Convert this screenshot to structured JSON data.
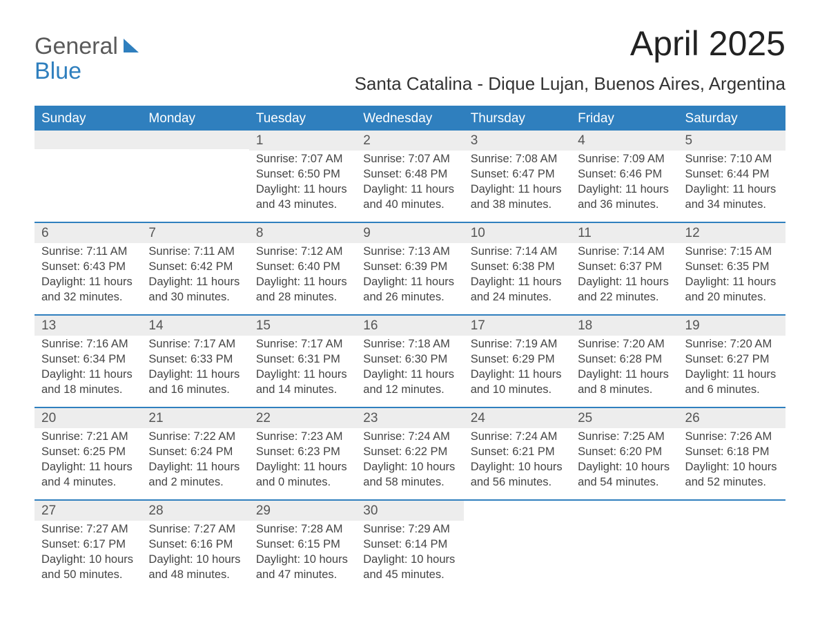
{
  "brand": {
    "text1": "General",
    "text2": "Blue"
  },
  "title": "April 2025",
  "location": "Santa Catalina - Dique Lujan, Buenos Aires, Argentina",
  "colors": {
    "brand_blue": "#2f7fbe",
    "header_text": "#ffffff",
    "daynum_bg": "#ededed",
    "body_text": "#444444",
    "page_bg": "#ffffff"
  },
  "day_names": [
    "Sunday",
    "Monday",
    "Tuesday",
    "Wednesday",
    "Thursday",
    "Friday",
    "Saturday"
  ],
  "labels": {
    "sunrise": "Sunrise:",
    "sunset": "Sunset:",
    "daylight": "Daylight:"
  },
  "weeks": [
    [
      {
        "empty": true
      },
      {
        "empty": true
      },
      {
        "day": "1",
        "sunrise": "7:07 AM",
        "sunset": "6:50 PM",
        "daylight": "11 hours and 43 minutes."
      },
      {
        "day": "2",
        "sunrise": "7:07 AM",
        "sunset": "6:48 PM",
        "daylight": "11 hours and 40 minutes."
      },
      {
        "day": "3",
        "sunrise": "7:08 AM",
        "sunset": "6:47 PM",
        "daylight": "11 hours and 38 minutes."
      },
      {
        "day": "4",
        "sunrise": "7:09 AM",
        "sunset": "6:46 PM",
        "daylight": "11 hours and 36 minutes."
      },
      {
        "day": "5",
        "sunrise": "7:10 AM",
        "sunset": "6:44 PM",
        "daylight": "11 hours and 34 minutes."
      }
    ],
    [
      {
        "day": "6",
        "sunrise": "7:11 AM",
        "sunset": "6:43 PM",
        "daylight": "11 hours and 32 minutes."
      },
      {
        "day": "7",
        "sunrise": "7:11 AM",
        "sunset": "6:42 PM",
        "daylight": "11 hours and 30 minutes."
      },
      {
        "day": "8",
        "sunrise": "7:12 AM",
        "sunset": "6:40 PM",
        "daylight": "11 hours and 28 minutes."
      },
      {
        "day": "9",
        "sunrise": "7:13 AM",
        "sunset": "6:39 PM",
        "daylight": "11 hours and 26 minutes."
      },
      {
        "day": "10",
        "sunrise": "7:14 AM",
        "sunset": "6:38 PM",
        "daylight": "11 hours and 24 minutes."
      },
      {
        "day": "11",
        "sunrise": "7:14 AM",
        "sunset": "6:37 PM",
        "daylight": "11 hours and 22 minutes."
      },
      {
        "day": "12",
        "sunrise": "7:15 AM",
        "sunset": "6:35 PM",
        "daylight": "11 hours and 20 minutes."
      }
    ],
    [
      {
        "day": "13",
        "sunrise": "7:16 AM",
        "sunset": "6:34 PM",
        "daylight": "11 hours and 18 minutes."
      },
      {
        "day": "14",
        "sunrise": "7:17 AM",
        "sunset": "6:33 PM",
        "daylight": "11 hours and 16 minutes."
      },
      {
        "day": "15",
        "sunrise": "7:17 AM",
        "sunset": "6:31 PM",
        "daylight": "11 hours and 14 minutes."
      },
      {
        "day": "16",
        "sunrise": "7:18 AM",
        "sunset": "6:30 PM",
        "daylight": "11 hours and 12 minutes."
      },
      {
        "day": "17",
        "sunrise": "7:19 AM",
        "sunset": "6:29 PM",
        "daylight": "11 hours and 10 minutes."
      },
      {
        "day": "18",
        "sunrise": "7:20 AM",
        "sunset": "6:28 PM",
        "daylight": "11 hours and 8 minutes."
      },
      {
        "day": "19",
        "sunrise": "7:20 AM",
        "sunset": "6:27 PM",
        "daylight": "11 hours and 6 minutes."
      }
    ],
    [
      {
        "day": "20",
        "sunrise": "7:21 AM",
        "sunset": "6:25 PM",
        "daylight": "11 hours and 4 minutes."
      },
      {
        "day": "21",
        "sunrise": "7:22 AM",
        "sunset": "6:24 PM",
        "daylight": "11 hours and 2 minutes."
      },
      {
        "day": "22",
        "sunrise": "7:23 AM",
        "sunset": "6:23 PM",
        "daylight": "11 hours and 0 minutes."
      },
      {
        "day": "23",
        "sunrise": "7:24 AM",
        "sunset": "6:22 PM",
        "daylight": "10 hours and 58 minutes."
      },
      {
        "day": "24",
        "sunrise": "7:24 AM",
        "sunset": "6:21 PM",
        "daylight": "10 hours and 56 minutes."
      },
      {
        "day": "25",
        "sunrise": "7:25 AM",
        "sunset": "6:20 PM",
        "daylight": "10 hours and 54 minutes."
      },
      {
        "day": "26",
        "sunrise": "7:26 AM",
        "sunset": "6:18 PM",
        "daylight": "10 hours and 52 minutes."
      }
    ],
    [
      {
        "day": "27",
        "sunrise": "7:27 AM",
        "sunset": "6:17 PM",
        "daylight": "10 hours and 50 minutes."
      },
      {
        "day": "28",
        "sunrise": "7:27 AM",
        "sunset": "6:16 PM",
        "daylight": "10 hours and 48 minutes."
      },
      {
        "day": "29",
        "sunrise": "7:28 AM",
        "sunset": "6:15 PM",
        "daylight": "10 hours and 47 minutes."
      },
      {
        "day": "30",
        "sunrise": "7:29 AM",
        "sunset": "6:14 PM",
        "daylight": "10 hours and 45 minutes."
      },
      {
        "empty": true,
        "nobar": true
      },
      {
        "empty": true,
        "nobar": true
      },
      {
        "empty": true,
        "nobar": true
      }
    ]
  ]
}
